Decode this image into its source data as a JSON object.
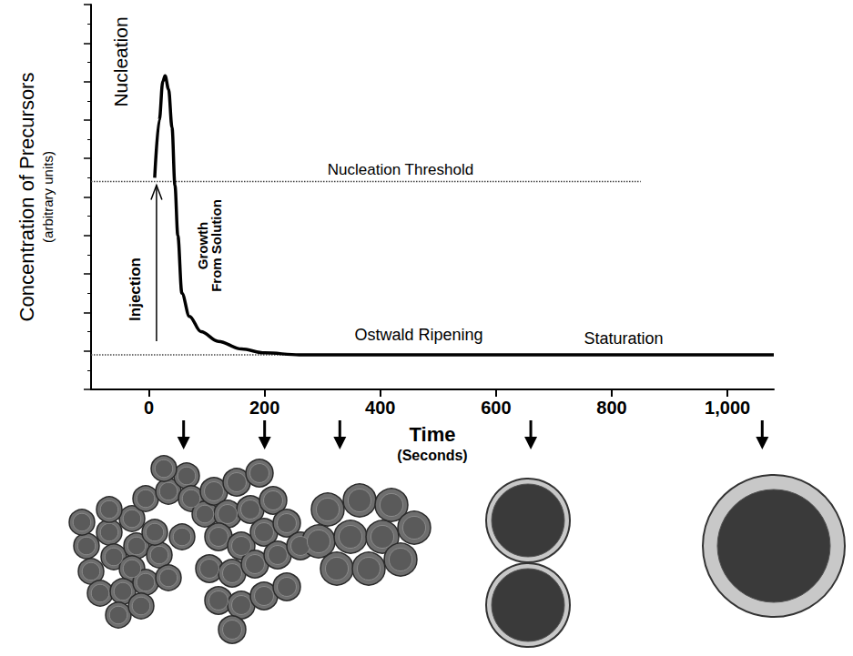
{
  "chart_data": {
    "type": "line",
    "x_label": "Time (Seconds)",
    "y_label": "Concentration of Precursors",
    "y_sublabel": "(arbitrary units)",
    "x": [
      10,
      18,
      24,
      28,
      34,
      40,
      45,
      50,
      57,
      70,
      90,
      120,
      160,
      200,
      260,
      1080
    ],
    "values": [
      5.5,
      7.0,
      8.0,
      8.15,
      7.8,
      6.8,
      5.3,
      4.0,
      2.5,
      1.9,
      1.5,
      1.25,
      1.05,
      0.95,
      0.9,
      0.9
    ],
    "color": "#000000",
    "xlim": [
      -100,
      1080
    ],
    "xticks": [
      0,
      200,
      400,
      600,
      800,
      1000
    ],
    "ylim": [
      0,
      10
    ],
    "yticks": [
      0,
      1,
      2,
      3,
      4,
      5,
      6,
      7,
      8,
      9,
      10
    ],
    "tick_labels": "x",
    "grid": false,
    "reference_lines": [
      {
        "y": 5.4,
        "x": [
          -100,
          850
        ],
        "line_style": "dotted"
      },
      {
        "y": 0.9,
        "x": [
          -100,
          1080
        ],
        "line_style": "dotted"
      }
    ],
    "annotations": {
      "nucleation": "Nucleation",
      "threshold": "Nucleation Threshold",
      "injection": "Injection",
      "growth": "Growth From Solution",
      "ripening": "Ostwald Ripening",
      "saturation": "Staturation"
    },
    "snapshot_times": [
      60,
      200,
      330,
      660,
      1060
    ]
  }
}
